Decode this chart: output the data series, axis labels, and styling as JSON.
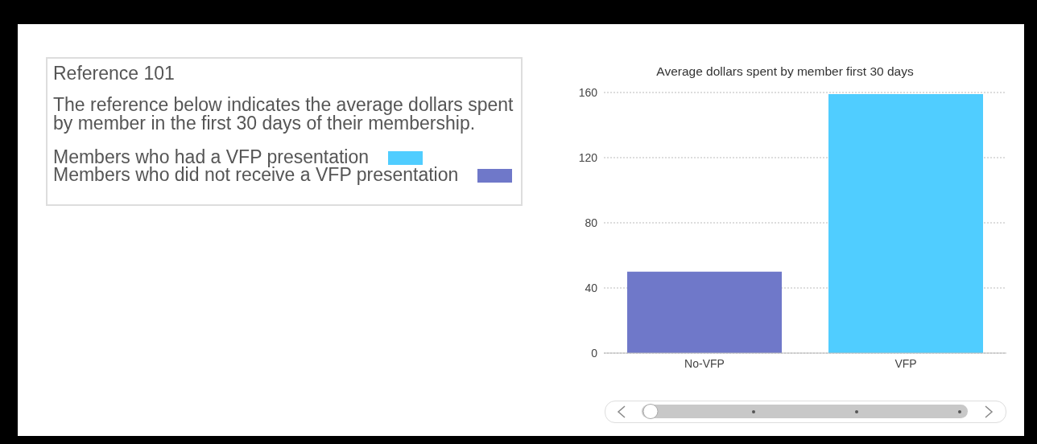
{
  "chart_data": {
    "type": "bar",
    "title": "Average dollars spent by member first 30 days",
    "annotations": [
      "Reference 101",
      "The reference below indicates the average dollars spent by member in the first 30 days of their membership."
    ],
    "categories": [
      "No-VFP",
      "VFP"
    ],
    "series": [
      {
        "name": "Members who had a VFP presentation",
        "color": "#50cdff",
        "values": [
          null,
          159
        ]
      },
      {
        "name": "Members who did not receive a VFP presentation",
        "color": "#6f78c9",
        "values": [
          50,
          null
        ]
      }
    ],
    "stacked": true,
    "ylim": [
      0,
      160
    ],
    "yticks": [
      0,
      40,
      80,
      120,
      160
    ],
    "grid": "y",
    "legend": "left"
  }
}
